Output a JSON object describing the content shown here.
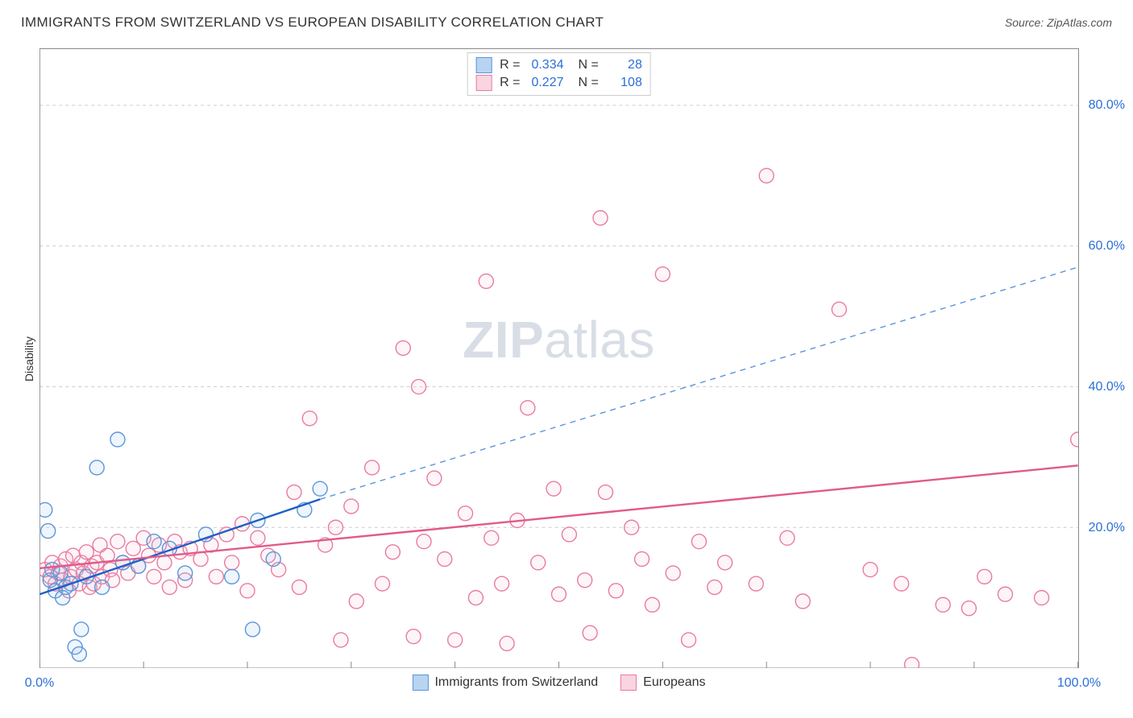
{
  "title": "IMMIGRANTS FROM SWITZERLAND VS EUROPEAN DISABILITY CORRELATION CHART",
  "source_label": "Source: ",
  "source_value": "ZipAtlas.com",
  "ylabel": "Disability",
  "watermark": {
    "bold": "ZIP",
    "rest": "atlas"
  },
  "chart": {
    "type": "scatter",
    "xlim": [
      0,
      100
    ],
    "ylim": [
      0,
      88
    ],
    "xticks": [
      0,
      10,
      20,
      30,
      40,
      50,
      60,
      70,
      80,
      90,
      100
    ],
    "xticks_labeled": [
      0,
      100
    ],
    "ytick_labels": [
      20,
      40,
      60,
      80
    ],
    "xtick_format": "%.1f%%",
    "ytick_format": "%.1f%%",
    "grid_color": "#cccccc",
    "grid_dash": "4,4",
    "axis_color": "#888888",
    "marker_radius": 9,
    "marker_stroke_width": 1.4,
    "marker_fill_opacity": 0.16,
    "series": [
      {
        "label": "Immigrants from Switzerland",
        "color_stroke": "#5a96db",
        "color_fill": "#9cc3ec",
        "swatch_fill": "#b8d4f1",
        "swatch_border": "#5a96db",
        "R": "0.334",
        "N": "28",
        "trend": {
          "solid": {
            "x1": 0,
            "y1": 10.5,
            "x2": 27,
            "y2": 24,
            "color": "#1f5fc4",
            "width": 2.4
          },
          "dashed": {
            "x1": 27,
            "y1": 24,
            "x2": 100,
            "y2": 57,
            "color": "#5a96db",
            "width": 1.4,
            "dash": "7,6"
          }
        },
        "points": [
          [
            0.5,
            22.5
          ],
          [
            0.8,
            19.5
          ],
          [
            1.0,
            12.5
          ],
          [
            1.2,
            14.0
          ],
          [
            1.5,
            11.0
          ],
          [
            2.0,
            13.5
          ],
          [
            2.2,
            10.0
          ],
          [
            2.5,
            11.5
          ],
          [
            3.0,
            12.0
          ],
          [
            3.4,
            3.0
          ],
          [
            3.8,
            2.0
          ],
          [
            4.0,
            5.5
          ],
          [
            4.5,
            13.0
          ],
          [
            5.5,
            28.5
          ],
          [
            6.0,
            11.5
          ],
          [
            7.5,
            32.5
          ],
          [
            8.0,
            15.0
          ],
          [
            9.5,
            14.5
          ],
          [
            11.0,
            18.0
          ],
          [
            12.5,
            17.0
          ],
          [
            14.0,
            13.5
          ],
          [
            16.0,
            19.0
          ],
          [
            18.5,
            13.0
          ],
          [
            20.5,
            5.5
          ],
          [
            21.0,
            21.0
          ],
          [
            22.5,
            15.5
          ],
          [
            25.5,
            22.5
          ],
          [
            27.0,
            25.5
          ]
        ]
      },
      {
        "label": "Europeans",
        "color_stroke": "#e87ba1",
        "color_fill": "#f6c2d4",
        "swatch_fill": "#f9d5e1",
        "swatch_border": "#e87ba1",
        "R": "0.227",
        "N": "108",
        "trend": {
          "solid": {
            "x1": 0,
            "y1": 14.2,
            "x2": 100,
            "y2": 28.8,
            "color": "#e15a8a",
            "width": 2.4
          }
        },
        "points": [
          [
            0.5,
            14.0
          ],
          [
            1.0,
            13.0
          ],
          [
            1.2,
            15.0
          ],
          [
            1.5,
            12.0
          ],
          [
            1.8,
            13.5
          ],
          [
            2.0,
            14.5
          ],
          [
            2.2,
            12.5
          ],
          [
            2.5,
            15.5
          ],
          [
            2.8,
            11.0
          ],
          [
            3.0,
            13.0
          ],
          [
            3.2,
            16.0
          ],
          [
            3.5,
            14.0
          ],
          [
            3.8,
            12.0
          ],
          [
            4.0,
            15.0
          ],
          [
            4.2,
            13.5
          ],
          [
            4.5,
            16.5
          ],
          [
            4.8,
            11.5
          ],
          [
            5.0,
            14.5
          ],
          [
            5.2,
            12.0
          ],
          [
            5.5,
            15.0
          ],
          [
            5.8,
            17.5
          ],
          [
            6.0,
            13.0
          ],
          [
            6.5,
            16.0
          ],
          [
            6.8,
            14.0
          ],
          [
            7.0,
            12.5
          ],
          [
            7.5,
            18.0
          ],
          [
            8.0,
            15.0
          ],
          [
            8.5,
            13.5
          ],
          [
            9.0,
            17.0
          ],
          [
            9.5,
            14.5
          ],
          [
            10.0,
            18.5
          ],
          [
            10.5,
            16.0
          ],
          [
            11.0,
            13.0
          ],
          [
            11.5,
            17.5
          ],
          [
            12.0,
            15.0
          ],
          [
            12.5,
            11.5
          ],
          [
            13.0,
            18.0
          ],
          [
            13.5,
            16.5
          ],
          [
            14.0,
            12.5
          ],
          [
            14.5,
            17.0
          ],
          [
            15.5,
            15.5
          ],
          [
            16.5,
            17.5
          ],
          [
            17.0,
            13.0
          ],
          [
            18.0,
            19.0
          ],
          [
            18.5,
            15.0
          ],
          [
            19.5,
            20.5
          ],
          [
            20.0,
            11.0
          ],
          [
            21.0,
            18.5
          ],
          [
            22.0,
            16.0
          ],
          [
            23.0,
            14.0
          ],
          [
            24.5,
            25.0
          ],
          [
            25.0,
            11.5
          ],
          [
            26.0,
            35.5
          ],
          [
            27.5,
            17.5
          ],
          [
            28.5,
            20.0
          ],
          [
            29.0,
            4.0
          ],
          [
            30.0,
            23.0
          ],
          [
            30.5,
            9.5
          ],
          [
            32.0,
            28.5
          ],
          [
            33.0,
            12.0
          ],
          [
            34.0,
            16.5
          ],
          [
            35.0,
            45.5
          ],
          [
            36.0,
            4.5
          ],
          [
            36.5,
            40.0
          ],
          [
            37.0,
            18.0
          ],
          [
            38.0,
            27.0
          ],
          [
            39.0,
            15.5
          ],
          [
            40.0,
            4.0
          ],
          [
            41.0,
            22.0
          ],
          [
            42.0,
            10.0
          ],
          [
            43.0,
            55.0
          ],
          [
            43.5,
            18.5
          ],
          [
            44.5,
            12.0
          ],
          [
            45.0,
            3.5
          ],
          [
            46.0,
            21.0
          ],
          [
            47.0,
            37.0
          ],
          [
            48.0,
            15.0
          ],
          [
            49.5,
            25.5
          ],
          [
            50.0,
            10.5
          ],
          [
            51.0,
            19.0
          ],
          [
            52.5,
            12.5
          ],
          [
            53.0,
            5.0
          ],
          [
            54.0,
            64.0
          ],
          [
            54.5,
            25.0
          ],
          [
            55.5,
            11.0
          ],
          [
            57.0,
            20.0
          ],
          [
            58.0,
            15.5
          ],
          [
            59.0,
            9.0
          ],
          [
            60.0,
            56.0
          ],
          [
            61.0,
            13.5
          ],
          [
            62.5,
            4.0
          ],
          [
            63.5,
            18.0
          ],
          [
            65.0,
            11.5
          ],
          [
            66.0,
            15.0
          ],
          [
            69.0,
            12.0
          ],
          [
            70.0,
            70.0
          ],
          [
            72.0,
            18.5
          ],
          [
            73.5,
            9.5
          ],
          [
            77.0,
            51.0
          ],
          [
            80.0,
            14.0
          ],
          [
            83.0,
            12.0
          ],
          [
            84.0,
            0.5
          ],
          [
            87.0,
            9.0
          ],
          [
            89.5,
            8.5
          ],
          [
            91.0,
            13.0
          ],
          [
            93.0,
            10.5
          ],
          [
            96.5,
            10.0
          ],
          [
            100.0,
            32.5
          ]
        ]
      }
    ]
  }
}
